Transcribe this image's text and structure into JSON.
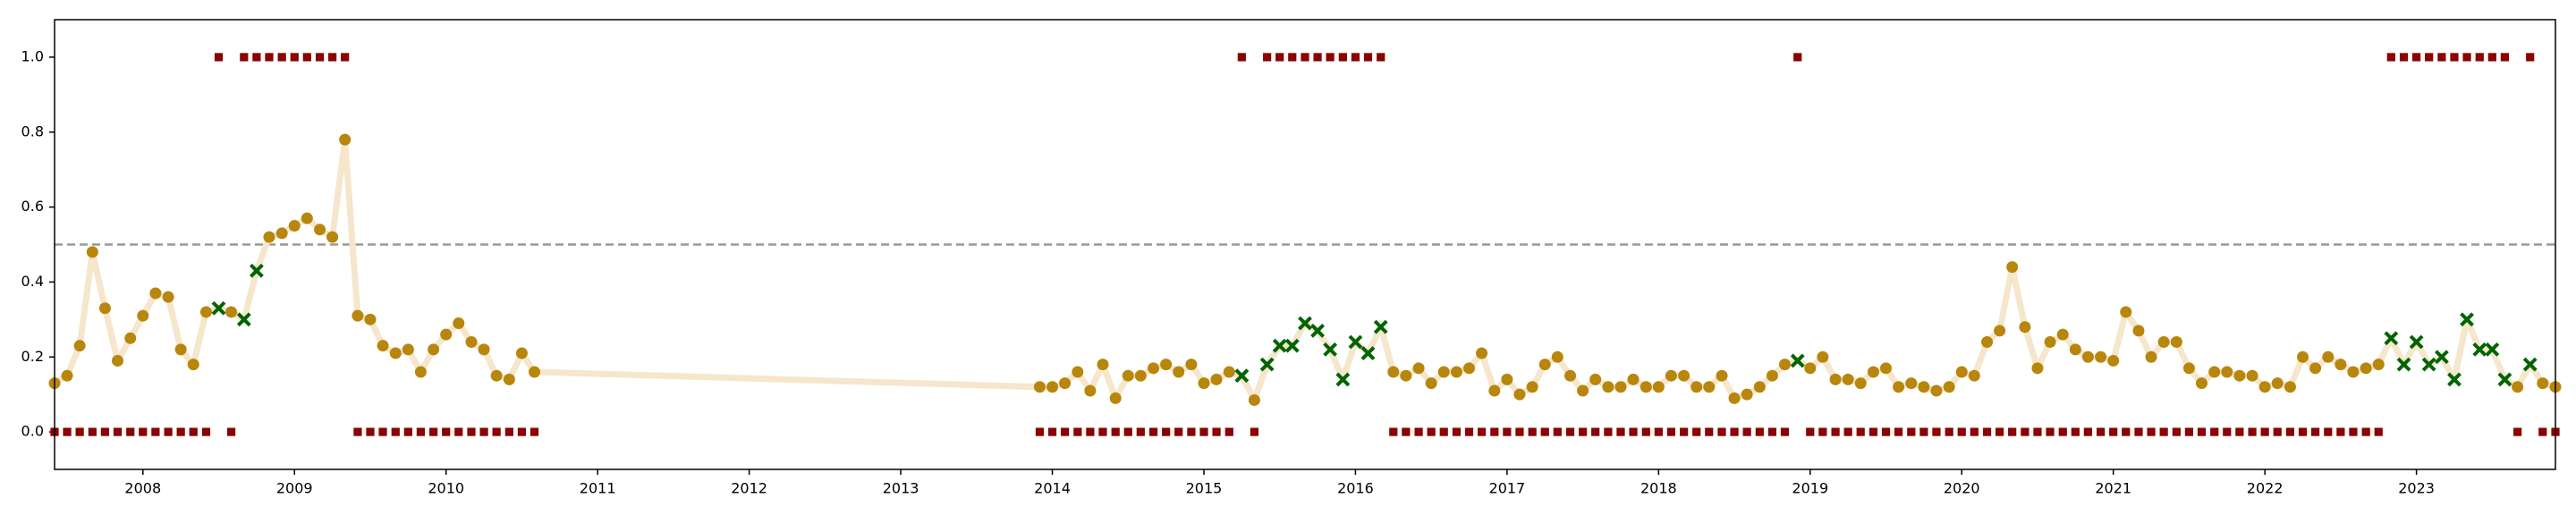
{
  "chart_data": {
    "type": "line",
    "x": [
      2007.417,
      2007.5,
      2007.583,
      2007.667,
      2007.75,
      2007.833,
      2007.917,
      2008,
      2008.083,
      2008.167,
      2008.25,
      2008.333,
      2008.417,
      2008.5,
      2008.583,
      2008.667,
      2008.75,
      2008.833,
      2008.917,
      2009,
      2009.083,
      2009.167,
      2009.25,
      2009.333,
      2009.417,
      2009.5,
      2009.583,
      2009.667,
      2009.75,
      2009.833,
      2009.917,
      2010,
      2010.083,
      2010.167,
      2010.25,
      2010.333,
      2010.417,
      2010.5,
      2010.583,
      2013.917,
      2014,
      2014.083,
      2014.167,
      2014.25,
      2014.333,
      2014.417,
      2014.5,
      2014.583,
      2014.667,
      2014.75,
      2014.833,
      2014.917,
      2015,
      2015.083,
      2015.167,
      2015.25,
      2015.333,
      2015.417,
      2015.5,
      2015.583,
      2015.667,
      2015.75,
      2015.833,
      2015.917,
      2016,
      2016.083,
      2016.167,
      2016.25,
      2016.333,
      2016.417,
      2016.5,
      2016.583,
      2016.667,
      2016.75,
      2016.833,
      2016.917,
      2017,
      2017.083,
      2017.167,
      2017.25,
      2017.333,
      2017.417,
      2017.5,
      2017.583,
      2017.667,
      2017.75,
      2017.833,
      2017.917,
      2018,
      2018.083,
      2018.167,
      2018.25,
      2018.333,
      2018.417,
      2018.5,
      2018.583,
      2018.667,
      2018.75,
      2018.833,
      2018.917,
      2019,
      2019.083,
      2019.167,
      2019.25,
      2019.333,
      2019.417,
      2019.5,
      2019.583,
      2019.667,
      2019.75,
      2019.833,
      2019.917,
      2020,
      2020.083,
      2020.167,
      2020.25,
      2020.333,
      2020.417,
      2020.5,
      2020.583,
      2020.667,
      2020.75,
      2020.833,
      2020.917,
      2021,
      2021.083,
      2021.167,
      2021.25,
      2021.333,
      2021.417,
      2021.5,
      2021.583,
      2021.667,
      2021.75,
      2021.833,
      2021.917,
      2022,
      2022.083,
      2022.167,
      2022.25,
      2022.333,
      2022.417,
      2022.5,
      2022.583,
      2022.667,
      2022.75,
      2022.833,
      2022.917,
      2023,
      2023.083,
      2023.167,
      2023.25,
      2023.333,
      2023.417,
      2023.5,
      2023.583,
      2023.667,
      2023.75,
      2023.833,
      2023.917
    ],
    "series": [
      {
        "color": "#b8860b",
        "values": [
          0.13,
          0.15,
          0.23,
          0.48,
          0.33,
          0.19,
          0.25,
          0.31,
          0.37,
          0.36,
          0.22,
          0.18,
          0.32,
          0.33,
          0.32,
          0.3,
          0.43,
          0.52,
          0.53,
          0.55,
          0.57,
          0.54,
          0.52,
          0.78,
          0.31,
          0.3,
          0.23,
          0.21,
          0.22,
          0.16,
          0.22,
          0.26,
          0.29,
          0.24,
          0.22,
          0.15,
          0.14,
          0.21,
          0.16,
          0.12,
          0.12,
          0.13,
          0.16,
          0.11,
          0.18,
          0.09,
          0.15,
          0.15,
          0.17,
          0.18,
          0.16,
          0.18,
          0.13,
          0.14,
          0.16,
          0.15,
          0.085,
          0.18,
          0.23,
          0.23,
          0.29,
          0.27,
          0.22,
          0.14,
          0.24,
          0.21,
          0.28,
          0.16,
          0.15,
          0.17,
          0.13,
          0.16,
          0.16,
          0.17,
          0.21,
          0.11,
          0.14,
          0.1,
          0.12,
          0.18,
          0.2,
          0.15,
          0.11,
          0.14,
          0.12,
          0.12,
          0.14,
          0.12,
          0.12,
          0.15,
          0.15,
          0.12,
          0.12,
          0.15,
          0.09,
          0.1,
          0.12,
          0.15,
          0.18,
          0.19,
          0.17,
          0.2,
          0.14,
          0.14,
          0.13,
          0.16,
          0.17,
          0.12,
          0.13,
          0.12,
          0.11,
          0.12,
          0.16,
          0.15,
          0.24,
          0.27,
          0.44,
          0.28,
          0.17,
          0.24,
          0.26,
          0.22,
          0.2,
          0.2,
          0.19,
          0.32,
          0.27,
          0.2,
          0.24,
          0.24,
          0.17,
          0.13,
          0.16,
          0.16,
          0.15,
          0.15,
          0.12,
          0.13,
          0.12,
          0.2,
          0.17,
          0.2,
          0.18,
          0.16,
          0.17,
          0.18,
          0.25,
          0.18,
          0.24,
          0.18,
          0.2,
          0.14,
          0.3,
          0.22,
          0.22,
          0.14,
          0.12,
          0.18,
          0.13,
          0.12
        ]
      },
      {
        "color": "#8b0000",
        "values": [
          0,
          0,
          0,
          0,
          0,
          0,
          0,
          0,
          0,
          0,
          0,
          0,
          0,
          1,
          0,
          1,
          1,
          1,
          1,
          1,
          1,
          1,
          1,
          1,
          0,
          0,
          0,
          0,
          0,
          0,
          0,
          0,
          0,
          0,
          0,
          0,
          0,
          0,
          0,
          0,
          0,
          0,
          0,
          0,
          0,
          0,
          0,
          0,
          0,
          0,
          0,
          0,
          0,
          0,
          0,
          1,
          0,
          1,
          1,
          1,
          1,
          1,
          1,
          1,
          1,
          1,
          1,
          0,
          0,
          0,
          0,
          0,
          0,
          0,
          0,
          0,
          0,
          0,
          0,
          0,
          0,
          0,
          0,
          0,
          0,
          0,
          0,
          0,
          0,
          0,
          0,
          0,
          0,
          0,
          0,
          0,
          0,
          0,
          0,
          1,
          0,
          0,
          0,
          0,
          0,
          0,
          0,
          0,
          0,
          0,
          0,
          0,
          0,
          0,
          0,
          0,
          0,
          0,
          0,
          0,
          0,
          0,
          0,
          0,
          0,
          0,
          0,
          0,
          0,
          0,
          0,
          0,
          0,
          0,
          0,
          0,
          0,
          0,
          0,
          0,
          0,
          0,
          0,
          0,
          0,
          0,
          1,
          1,
          1,
          1,
          1,
          1,
          1,
          1,
          1,
          1,
          0,
          1,
          0,
          0
        ]
      }
    ],
    "line_color": "#f5e6cc",
    "miss_color": "#006400",
    "threshold": 0.5,
    "xlim": [
      2007.417,
      2023.917
    ],
    "ylim": [
      -0.1,
      1.1
    ],
    "xticks": [
      2008,
      2009,
      2010,
      2011,
      2012,
      2013,
      2014,
      2015,
      2016,
      2017,
      2018,
      2019,
      2020,
      2021,
      2022,
      2023
    ],
    "yticks": [
      {
        "value": 0,
        "label": "0.0"
      },
      {
        "value": 0.2,
        "label": "0.2"
      },
      {
        "value": 0.4,
        "label": "0.4"
      },
      {
        "value": 0.6,
        "label": "0.6"
      },
      {
        "value": 0.8,
        "label": "0.8"
      },
      {
        "value": 1,
        "label": "1.0"
      }
    ]
  }
}
